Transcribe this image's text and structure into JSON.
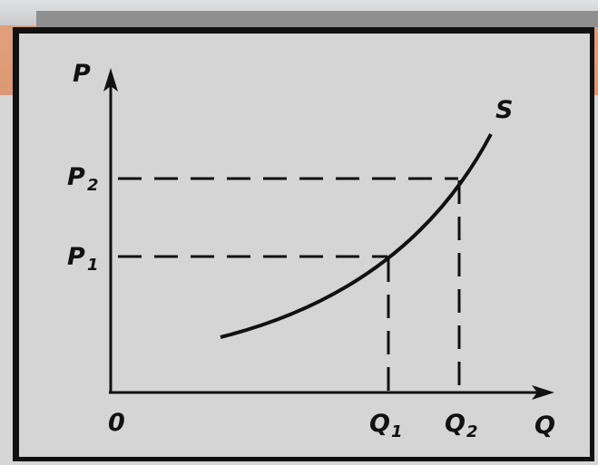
{
  "diagram": {
    "labels": {
      "y_axis": "P",
      "x_axis": "Q",
      "origin": "0",
      "curve": "S",
      "p1": "P",
      "p1_sub": "1",
      "p2": "P",
      "p2_sub": "2",
      "q1": "Q",
      "q1_sub": "1",
      "q2": "Q",
      "q2_sub": "2"
    },
    "colors": {
      "banner": "#dc9873",
      "panel": "#d5d5d5",
      "ink": "#111111"
    }
  }
}
